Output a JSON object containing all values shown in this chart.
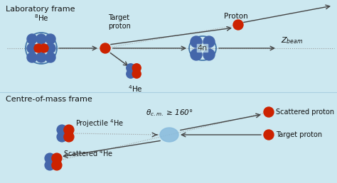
{
  "bg_color": "#cce8f0",
  "blue_n": "#4466aa",
  "red_p": "#cc2200",
  "outline_color": "#4477aa",
  "arrow_color": "#444444",
  "dot_color": "#888888",
  "text_color": "#111111",
  "title1": "Laboratory frame",
  "title2": "Centre-of-mass frame",
  "label_8He": "$^8$He",
  "label_tp": "Target\nproton",
  "label_4He": "$^4$He",
  "label_proton": "Proton",
  "label_zbeam": "$Z_{beam}$",
  "label_4n": "4n",
  "label_proj": "Projectile $^4$He",
  "label_s4He": "Scattered $^4$He",
  "label_sp": "Scattered proton",
  "label_tp2": "Target proton",
  "label_theta": "$\\theta_{c.m.}$ ≥ 160°"
}
